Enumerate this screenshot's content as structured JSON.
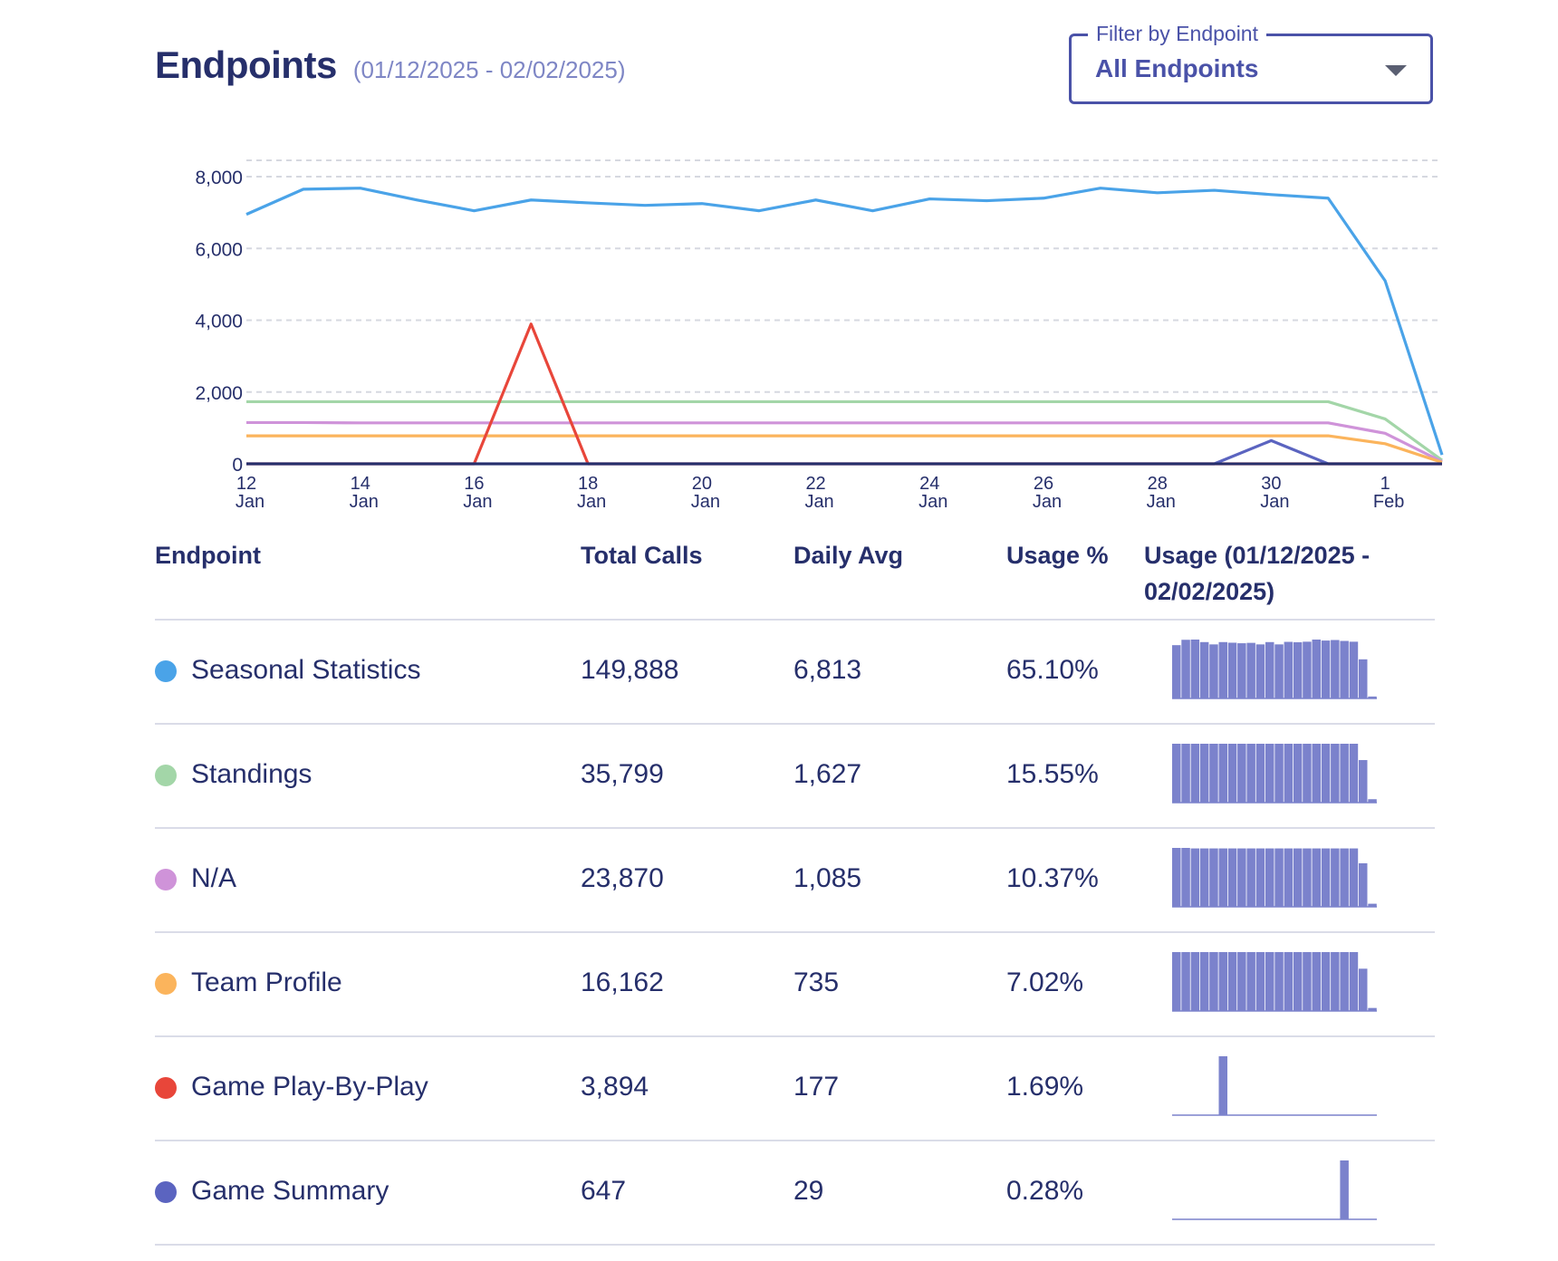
{
  "header": {
    "title": "Endpoints",
    "date_range": "(01/12/2025 - 02/02/2025)"
  },
  "filter": {
    "label": "Filter by Endpoint",
    "value": "All Endpoints"
  },
  "chart_data": {
    "type": "line",
    "x": [
      "2025-01-12",
      "2025-01-13",
      "2025-01-14",
      "2025-01-15",
      "2025-01-16",
      "2025-01-17",
      "2025-01-18",
      "2025-01-19",
      "2025-01-20",
      "2025-01-21",
      "2025-01-22",
      "2025-01-23",
      "2025-01-24",
      "2025-01-25",
      "2025-01-26",
      "2025-01-27",
      "2025-01-28",
      "2025-01-29",
      "2025-01-30",
      "2025-01-31",
      "2025-02-01",
      "2025-02-02"
    ],
    "x_ticks": [
      {
        "x": "2025-01-12",
        "day": "12",
        "month": "Jan"
      },
      {
        "x": "2025-01-14",
        "day": "14",
        "month": "Jan"
      },
      {
        "x": "2025-01-16",
        "day": "16",
        "month": "Jan"
      },
      {
        "x": "2025-01-18",
        "day": "18",
        "month": "Jan"
      },
      {
        "x": "2025-01-20",
        "day": "20",
        "month": "Jan"
      },
      {
        "x": "2025-01-22",
        "day": "22",
        "month": "Jan"
      },
      {
        "x": "2025-01-24",
        "day": "24",
        "month": "Jan"
      },
      {
        "x": "2025-01-26",
        "day": "26",
        "month": "Jan"
      },
      {
        "x": "2025-01-28",
        "day": "28",
        "month": "Jan"
      },
      {
        "x": "2025-01-30",
        "day": "30",
        "month": "Jan"
      },
      {
        "x": "2025-02-01",
        "day": "1",
        "month": "Feb"
      }
    ],
    "y_ticks": [
      "0",
      "2,000",
      "4,000",
      "6,000",
      "8,000"
    ],
    "ylim": [
      0,
      8000
    ],
    "grid": true,
    "series": [
      {
        "name": "Seasonal Statistics",
        "color": "#4aa3e8",
        "values": [
          6950,
          7650,
          7680,
          7350,
          7050,
          7350,
          7270,
          7200,
          7250,
          7050,
          7350,
          7050,
          7380,
          7330,
          7400,
          7680,
          7550,
          7620,
          7500,
          7400,
          5100,
          250
        ]
      },
      {
        "name": "Standings",
        "color": "#a3d6a8",
        "values": [
          1730,
          1730,
          1730,
          1730,
          1730,
          1730,
          1730,
          1730,
          1730,
          1730,
          1730,
          1730,
          1730,
          1730,
          1730,
          1730,
          1730,
          1730,
          1730,
          1730,
          1250,
          100
        ]
      },
      {
        "name": "N/A",
        "color": "#cf93d9",
        "values": [
          1150,
          1150,
          1140,
          1140,
          1140,
          1140,
          1140,
          1140,
          1140,
          1140,
          1140,
          1140,
          1140,
          1140,
          1140,
          1140,
          1140,
          1140,
          1140,
          1140,
          850,
          60
        ]
      },
      {
        "name": "Team Profile",
        "color": "#fbb45c",
        "values": [
          780,
          780,
          780,
          780,
          780,
          780,
          780,
          780,
          780,
          780,
          780,
          780,
          780,
          780,
          780,
          780,
          780,
          780,
          780,
          780,
          560,
          40
        ]
      },
      {
        "name": "Game Play-By-Play",
        "color": "#e8463a",
        "values": [
          0,
          0,
          0,
          0,
          0,
          3894,
          0,
          0,
          0,
          0,
          0,
          0,
          0,
          0,
          0,
          0,
          0,
          0,
          0,
          0,
          0,
          0
        ]
      },
      {
        "name": "Game Summary",
        "color": "#5b64c0",
        "values": [
          0,
          0,
          0,
          0,
          0,
          0,
          0,
          0,
          0,
          0,
          0,
          0,
          0,
          0,
          0,
          0,
          0,
          0,
          647,
          0,
          0,
          0
        ]
      }
    ]
  },
  "table": {
    "headers": {
      "endpoint": "Endpoint",
      "total": "Total Calls",
      "avg": "Daily Avg",
      "pct": "Usage %",
      "usage_line1": "Usage (01/12/2025 -",
      "usage_line2": "02/02/2025)"
    },
    "spark_color": "#7b82cc",
    "rows": [
      {
        "name": "Seasonal Statistics",
        "color": "#4aa3e8",
        "total": "149,888",
        "avg": "6,813",
        "pct": "65.10%",
        "spark": [
          6950,
          7650,
          7680,
          7350,
          7050,
          7350,
          7270,
          7200,
          7250,
          7050,
          7350,
          7050,
          7380,
          7330,
          7400,
          7680,
          7550,
          7620,
          7500,
          7400,
          5100,
          250
        ]
      },
      {
        "name": "Standings",
        "color": "#a3d6a8",
        "total": "35,799",
        "avg": "1,627",
        "pct": "15.55%",
        "spark": [
          1730,
          1730,
          1730,
          1730,
          1730,
          1730,
          1730,
          1730,
          1730,
          1730,
          1730,
          1730,
          1730,
          1730,
          1730,
          1730,
          1730,
          1730,
          1730,
          1730,
          1250,
          100
        ]
      },
      {
        "name": "N/A",
        "color": "#cf93d9",
        "total": "23,870",
        "avg": "1,085",
        "pct": "10.37%",
        "spark": [
          1150,
          1150,
          1140,
          1140,
          1140,
          1140,
          1140,
          1140,
          1140,
          1140,
          1140,
          1140,
          1140,
          1140,
          1140,
          1140,
          1140,
          1140,
          1140,
          1140,
          850,
          60
        ]
      },
      {
        "name": "Team Profile",
        "color": "#fbb45c",
        "total": "16,162",
        "avg": "735",
        "pct": "7.02%",
        "spark": [
          780,
          780,
          780,
          780,
          780,
          780,
          780,
          780,
          780,
          780,
          780,
          780,
          780,
          780,
          780,
          780,
          780,
          780,
          780,
          780,
          560,
          40
        ]
      },
      {
        "name": "Game Play-By-Play",
        "color": "#e8463a",
        "total": "3,894",
        "avg": "177",
        "pct": "1.69%",
        "spark": [
          0,
          0,
          0,
          0,
          0,
          3894,
          0,
          0,
          0,
          0,
          0,
          0,
          0,
          0,
          0,
          0,
          0,
          0,
          0,
          0,
          0,
          0
        ]
      },
      {
        "name": "Game Summary",
        "color": "#5b64c0",
        "total": "647",
        "avg": "29",
        "pct": "0.28%",
        "spark": [
          0,
          0,
          0,
          0,
          0,
          0,
          0,
          0,
          0,
          0,
          0,
          0,
          0,
          0,
          0,
          0,
          0,
          0,
          647,
          0,
          0,
          0
        ]
      }
    ]
  }
}
